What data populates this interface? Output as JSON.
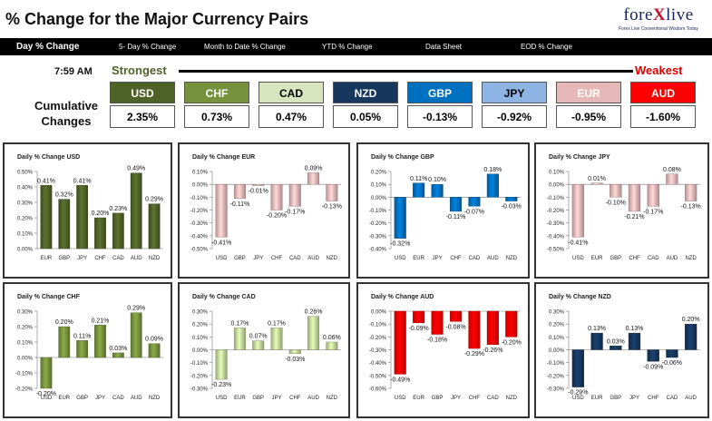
{
  "header": {
    "title": "% Change for the Major Currency Pairs",
    "logo_name": "forexlive",
    "logo_tagline": "Forex Live Conventional Wisdom Today"
  },
  "tabs": [
    {
      "label": "Day % Change",
      "active": true
    },
    {
      "label": "5- Day % Change",
      "active": false
    },
    {
      "label": "Month to Date % Change",
      "active": false
    },
    {
      "label": "YTD % Change",
      "active": false
    },
    {
      "label": "Data Sheet",
      "active": false
    },
    {
      "label": "EOD % Change",
      "active": false
    }
  ],
  "summary": {
    "time": "7:59 AM",
    "strongest_label": "Strongest",
    "weakest_label": "Weakest",
    "cumulative_label_line1": "Cumulative",
    "cumulative_label_line2": "Changes",
    "currencies": [
      {
        "name": "USD",
        "value": "2.35%",
        "color": "#4f6228",
        "text_color": "#ffffff"
      },
      {
        "name": "CHF",
        "value": "0.73%",
        "color": "#76923c",
        "text_color": "#ffffff"
      },
      {
        "name": "CAD",
        "value": "0.47%",
        "color": "#d7e4bd",
        "text_color": "#000000"
      },
      {
        "name": "NZD",
        "value": "0.05%",
        "color": "#17375e",
        "text_color": "#ffffff"
      },
      {
        "name": "GBP",
        "value": "-0.13%",
        "color": "#0070c0",
        "text_color": "#ffffff"
      },
      {
        "name": "JPY",
        "value": "-0.92%",
        "color": "#8db4e2",
        "text_color": "#000000"
      },
      {
        "name": "EUR",
        "value": "-0.95%",
        "color": "#e6b9b8",
        "text_color": "#ffffff"
      },
      {
        "name": "AUD",
        "value": "-1.60%",
        "color": "#ff0000",
        "text_color": "#ffffff"
      }
    ]
  },
  "chart_data": [
    {
      "type": "bar",
      "title": "Daily % Change USD",
      "categories": [
        "EUR",
        "GBP",
        "JPY",
        "CHF",
        "CAD",
        "AUD",
        "NZD"
      ],
      "values": [
        0.41,
        0.32,
        0.41,
        0.2,
        0.23,
        0.49,
        0.29
      ],
      "labels": [
        "0.41%",
        "0.32%",
        "0.41%",
        "0.20%",
        "0.23%",
        "0.49%",
        "0.29%"
      ],
      "yticks": [
        "0.50%",
        "0.40%",
        "0.30%",
        "0.20%",
        "0.10%",
        "0.00%"
      ],
      "ylim": [
        0,
        0.5
      ],
      "color": "#4f6228"
    },
    {
      "type": "bar",
      "title": "Daily % Change EUR",
      "categories": [
        "USD",
        "GBP",
        "JPY",
        "CHF",
        "CAD",
        "AUD",
        "NZD"
      ],
      "values": [
        -0.41,
        -0.11,
        -0.01,
        -0.2,
        -0.17,
        0.09,
        -0.13
      ],
      "labels": [
        "-0.41%",
        "-0.11%",
        "-0.01%",
        "-0.20%",
        "-0.17%",
        "0.09%",
        "-0.13%"
      ],
      "yticks": [
        "0.10%",
        "0.00%",
        "-0.10%",
        "-0.20%",
        "-0.30%",
        "-0.40%",
        "-0.50%"
      ],
      "ylim": [
        -0.5,
        0.1
      ],
      "color": "#e6b9b8"
    },
    {
      "type": "bar",
      "title": "Daily % Change GBP",
      "categories": [
        "USD",
        "EUR",
        "JPY",
        "CHF",
        "CAD",
        "AUD",
        "NZD"
      ],
      "values": [
        -0.32,
        0.11,
        0.1,
        -0.11,
        -0.07,
        0.18,
        -0.03
      ],
      "labels": [
        "-0.32%",
        "0.11%",
        "0.10%",
        "-0.11%",
        "-0.07%",
        "0.18%",
        "-0.03%"
      ],
      "yticks": [
        "0.20%",
        "0.10%",
        "0.00%",
        "-0.10%",
        "-0.20%",
        "-0.30%",
        "-0.40%"
      ],
      "ylim": [
        -0.4,
        0.2
      ],
      "color": "#0070c0"
    },
    {
      "type": "bar",
      "title": "Daily % Change JPY",
      "categories": [
        "USD",
        "EUR",
        "GBP",
        "CHF",
        "CAD",
        "AUD",
        "NZD"
      ],
      "values": [
        -0.41,
        0.01,
        -0.1,
        -0.21,
        -0.17,
        0.08,
        -0.13
      ],
      "labels": [
        "-0.41%",
        "0.01%",
        "-0.10%",
        "-0.21%",
        "-0.17%",
        "0.08%",
        "-0.13%"
      ],
      "yticks": [
        "0.10%",
        "0.00%",
        "-0.10%",
        "-0.20%",
        "-0.30%",
        "-0.40%",
        "-0.50%"
      ],
      "ylim": [
        -0.5,
        0.1
      ],
      "color": "#e6b9b8"
    },
    {
      "type": "bar",
      "title": "Daily % Change CHF",
      "categories": [
        "USD",
        "EUR",
        "GBP",
        "JPY",
        "CAD",
        "AUD",
        "NZD"
      ],
      "values": [
        -0.2,
        0.2,
        0.11,
        0.21,
        0.03,
        0.29,
        0.09
      ],
      "labels": [
        "-0.20%",
        "0.20%",
        "0.11%",
        "0.21%",
        "0.03%",
        "0.29%",
        "0.09%"
      ],
      "yticks": [
        "0.30%",
        "0.20%",
        "0.10%",
        "0.00%",
        "-0.10%",
        "-0.20%"
      ],
      "ylim": [
        -0.2,
        0.3
      ],
      "color": "#76923c"
    },
    {
      "type": "bar",
      "title": "Daily % Change CAD",
      "categories": [
        "USD",
        "EUR",
        "GBP",
        "JPY",
        "CHF",
        "AUD",
        "NZD"
      ],
      "values": [
        -0.23,
        0.17,
        0.07,
        0.17,
        -0.03,
        0.26,
        0.06
      ],
      "labels": [
        "-0.23%",
        "0.17%",
        "0.07%",
        "0.17%",
        "-0.03%",
        "0.26%",
        "0.06%"
      ],
      "yticks": [
        "0.30%",
        "0.20%",
        "0.10%",
        "0.00%",
        "-0.10%",
        "-0.20%",
        "-0.30%"
      ],
      "ylim": [
        -0.3,
        0.3
      ],
      "color": "#c3d69b"
    },
    {
      "type": "bar",
      "title": "Daily % Change AUD",
      "categories": [
        "USD",
        "EUR",
        "GBP",
        "JPY",
        "CHF",
        "CAD",
        "NZD"
      ],
      "values": [
        -0.49,
        -0.09,
        -0.18,
        -0.08,
        -0.29,
        -0.26,
        -0.2
      ],
      "labels": [
        "-0.49%",
        "-0.09%",
        "-0.18%",
        "-0.08%",
        "-0.29%",
        "-0.26%",
        "-0.20%"
      ],
      "yticks": [
        "0.00%",
        "-0.10%",
        "-0.20%",
        "-0.30%",
        "-0.40%",
        "-0.50%",
        "-0.60%"
      ],
      "ylim": [
        -0.6,
        0
      ],
      "color": "#ff0000"
    },
    {
      "type": "bar",
      "title": "Daily % Change NZD",
      "categories": [
        "USD",
        "EUR",
        "GBP",
        "JPY",
        "CHF",
        "CAD",
        "AUD"
      ],
      "values": [
        -0.29,
        0.13,
        0.03,
        0.13,
        -0.09,
        -0.06,
        0.2
      ],
      "labels": [
        "-0.29%",
        "0.13%",
        "0.03%",
        "0.13%",
        "-0.09%",
        "-0.06%",
        "0.20%"
      ],
      "yticks": [
        "0.30%",
        "0.20%",
        "0.10%",
        "0.00%",
        "-0.10%",
        "-0.20%",
        "-0.30%"
      ],
      "ylim": [
        -0.3,
        0.3
      ],
      "color": "#17375e"
    }
  ]
}
